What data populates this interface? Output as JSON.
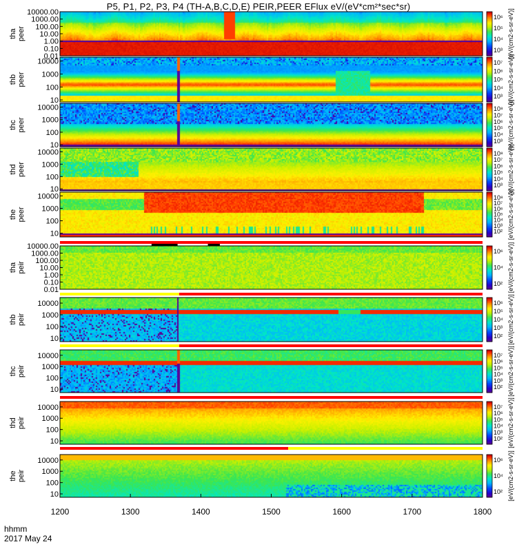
{
  "title": "P5, P1, P2, P3, P4 (TH-A,B,C,D,E) PEIR,PEER EFlux eV/(eV*cm²*sec*sr)",
  "footer": {
    "xunit": "hhmm",
    "date": "2017 May 24"
  },
  "colors": {
    "bg": "#ffffff",
    "status_red": "#ff0000",
    "status_yellow": "#ffff00",
    "status_black": "#000000"
  },
  "chart_data": {
    "type": "heatmap",
    "x_axis": {
      "ticks": [
        "1200",
        "1300",
        "1400",
        "1500",
        "1600",
        "1700",
        "1800"
      ],
      "range": [
        1200,
        1800
      ]
    },
    "colorbar_label": "[eV/(cm2-s-sr-eV)]",
    "panels": [
      {
        "name": "tha peer",
        "probe": "tha",
        "species": "peer",
        "yticks": [
          "10000.00",
          "1000.00",
          "100.00",
          "10.00",
          "1.00",
          "0.10",
          "0.01"
        ],
        "cbticks": [
          "10⁶",
          "10⁵",
          "10⁴",
          "10³"
        ],
        "yrange": [
          0.01,
          10000
        ],
        "ylog": true,
        "pattern": "tha_peer"
      },
      {
        "name": "thb peer",
        "probe": "thb",
        "species": "peer",
        "yticks": [
          "10000",
          "1000",
          "100",
          "10"
        ],
        "cbticks": [
          "10⁷",
          "10⁶",
          "10⁵",
          "10⁴",
          "10³"
        ],
        "yrange": [
          7,
          20000
        ],
        "ylog": true,
        "pattern": "thb_peer"
      },
      {
        "name": "thc peer",
        "probe": "thc",
        "species": "peer",
        "yticks": [
          "10000",
          "1000",
          "100",
          "10"
        ],
        "cbticks": [
          "10⁸",
          "10⁷",
          "10⁶",
          "10⁵",
          "10⁴",
          "10³"
        ],
        "yrange": [
          7,
          20000
        ],
        "ylog": true,
        "pattern": "thc_peer"
      },
      {
        "name": "thd peer",
        "probe": "thd",
        "species": "peer",
        "yticks": [
          "10000",
          "1000",
          "100",
          "10"
        ],
        "cbticks": [
          "10⁸",
          "10⁷",
          "10⁶",
          "10⁵",
          "10⁴",
          "10³"
        ],
        "yrange": [
          7,
          20000
        ],
        "ylog": true,
        "pattern": "thd_peer"
      },
      {
        "name": "the peer",
        "probe": "the",
        "species": "peer",
        "yticks": [
          "10000",
          "1000",
          "100",
          "10"
        ],
        "cbticks": [
          "10⁸",
          "10⁷",
          "10⁶",
          "10⁵",
          "10⁴",
          "10³",
          "10²"
        ],
        "yrange": [
          5,
          20000
        ],
        "ylog": true,
        "pattern": "the_peer"
      },
      {
        "name": "tha peir",
        "probe": "tha",
        "species": "peir",
        "yticks": [
          "10000.00",
          "1000.00",
          "100.00",
          "10.00",
          "1.00",
          "0.10",
          "0.01"
        ],
        "cbticks": [
          "10⁶",
          "10⁴",
          "10²"
        ],
        "yrange": [
          0.01,
          10000
        ],
        "ylog": true,
        "pattern": "tha_peir"
      },
      {
        "name": "thb peir",
        "probe": "thb",
        "species": "peir",
        "yticks": [
          "10000",
          "1000",
          "100",
          "10"
        ],
        "cbticks": [
          "10⁶",
          "10⁵",
          "10⁴",
          "10³",
          "10²"
        ],
        "yrange": [
          5,
          30000
        ],
        "ylog": true,
        "pattern": "thb_peir"
      },
      {
        "name": "thc peir",
        "probe": "thc",
        "species": "peir",
        "yticks": [
          "10000",
          "1000",
          "100",
          "10"
        ],
        "cbticks": [
          "10⁷",
          "10⁶",
          "10⁵",
          "10⁴",
          "10³",
          "10²"
        ],
        "yrange": [
          5,
          30000
        ],
        "ylog": true,
        "pattern": "thc_peir"
      },
      {
        "name": "thd peir",
        "probe": "thd",
        "species": "peir",
        "yticks": [
          "10000",
          "1000",
          "100",
          "10"
        ],
        "cbticks": [
          "10⁷",
          "10⁶",
          "10⁵",
          "10⁴",
          "10³",
          "10²"
        ],
        "yrange": [
          5,
          30000
        ],
        "ylog": true,
        "pattern": "thd_peir"
      },
      {
        "name": "the peir",
        "probe": "the",
        "species": "peir",
        "yticks": [
          "10000",
          "1000",
          "100",
          "10"
        ],
        "cbticks": [
          "10⁶",
          "10⁴",
          "10²"
        ],
        "yrange": [
          5,
          30000
        ],
        "ylog": true,
        "pattern": "the_peir"
      }
    ]
  }
}
